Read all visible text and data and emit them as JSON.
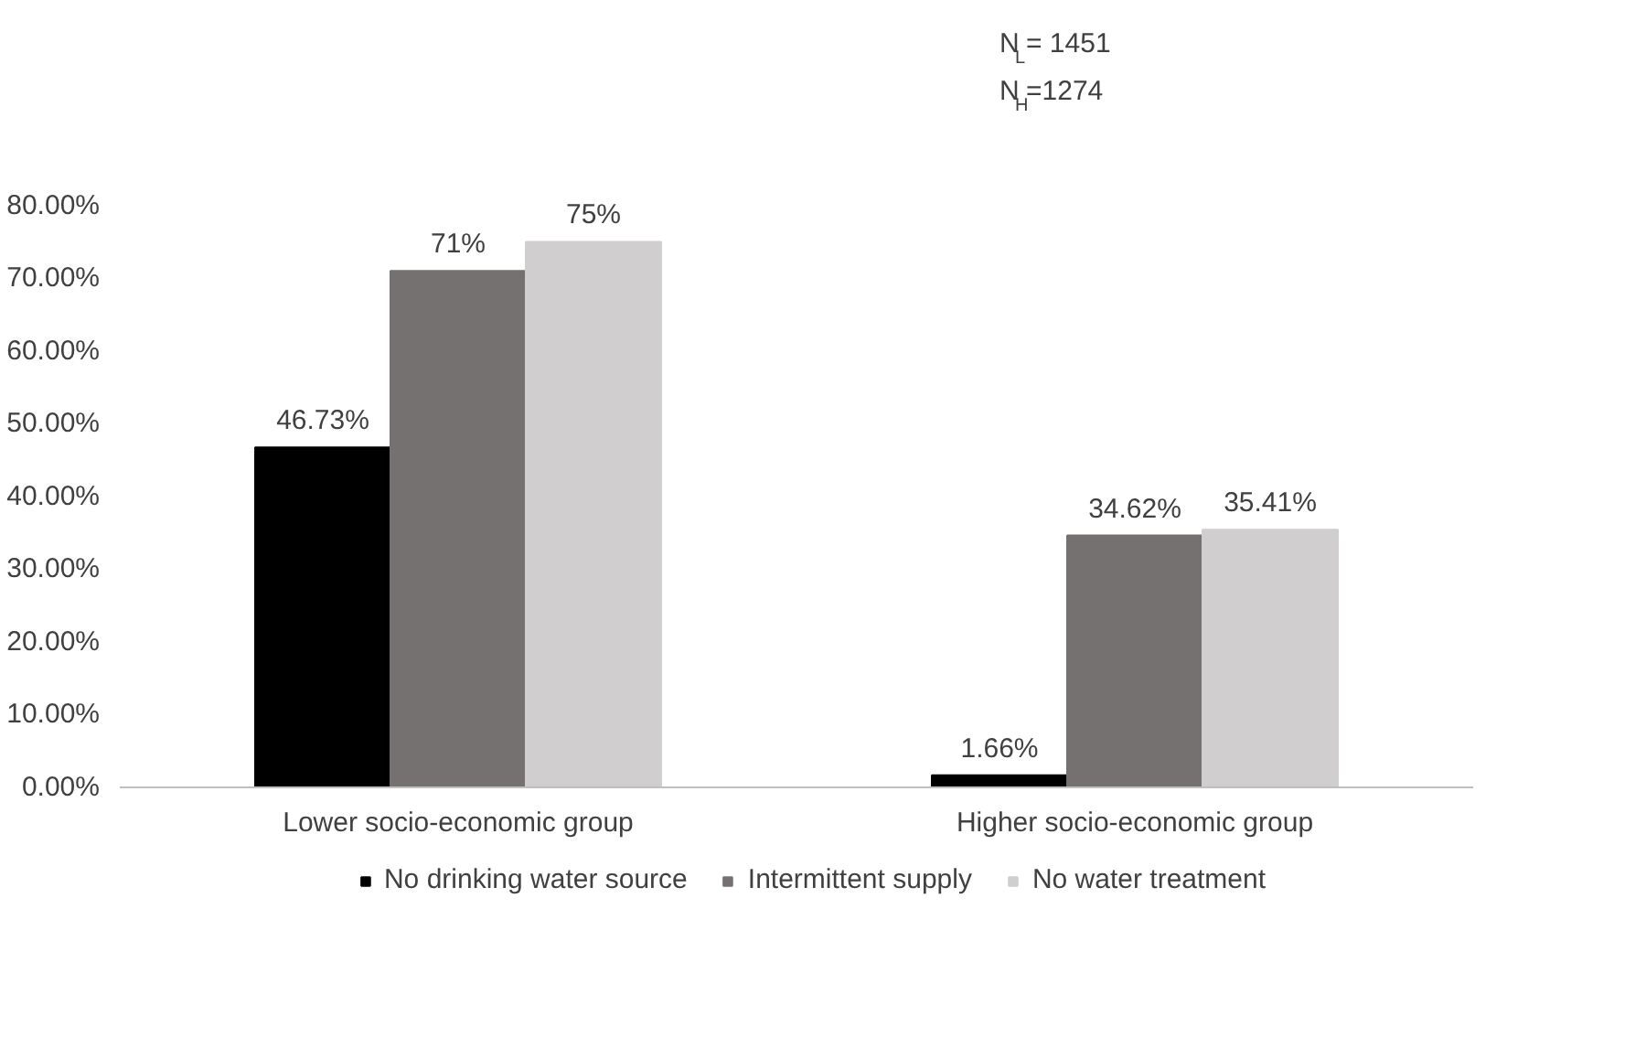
{
  "chart_data": {
    "type": "bar",
    "categories": [
      "Lower socio-economic group",
      "Higher socio-economic group"
    ],
    "series": [
      {
        "name": "No drinking water source",
        "color": "#000000",
        "values": [
          46.73,
          1.66
        ],
        "value_labels": [
          "46.73%",
          "1.66%"
        ]
      },
      {
        "name": "Intermittent supply",
        "color": "#767171",
        "values": [
          71,
          34.62
        ],
        "value_labels": [
          "71%",
          "34.62%"
        ]
      },
      {
        "name": "No water treatment",
        "color": "#d0cece",
        "values": [
          75,
          35.41
        ],
        "value_labels": [
          "75%",
          "35.41%"
        ]
      }
    ],
    "ylim": [
      0,
      80
    ],
    "yticks": [
      {
        "value": 0,
        "label": "0.00%"
      },
      {
        "value": 10,
        "label": "10.00%"
      },
      {
        "value": 20,
        "label": "20.00%"
      },
      {
        "value": 30,
        "label": "30.00%"
      },
      {
        "value": 40,
        "label": "40.00%"
      },
      {
        "value": 50,
        "label": "50.00%"
      },
      {
        "value": 60,
        "label": "60.00%"
      },
      {
        "value": 70,
        "label": "70.00%"
      },
      {
        "value": 80,
        "label": "80.00%"
      }
    ],
    "grid": false,
    "legend": "bottom",
    "annotations": [
      "N$_{L}$= 1451",
      "N$_{H}$=1274"
    ]
  }
}
